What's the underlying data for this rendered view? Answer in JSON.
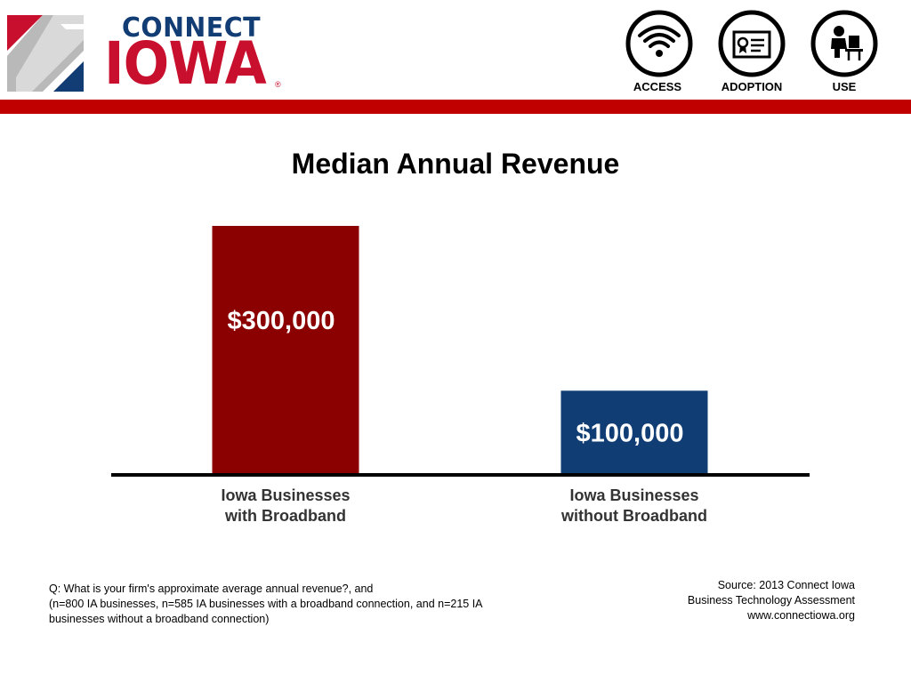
{
  "header": {
    "logo": {
      "word1": "CONNECT",
      "word2": "IOWA",
      "reg": "®"
    },
    "icons": [
      {
        "label": "ACCESS",
        "icon": "wifi-icon"
      },
      {
        "label": "ADOPTION",
        "icon": "certificate-icon"
      },
      {
        "label": "USE",
        "icon": "computer-user-icon"
      }
    ],
    "colors": {
      "brand_red": "#c00000",
      "brand_blue": "#123d74"
    }
  },
  "chart_data": {
    "type": "bar",
    "title": "Median Annual Revenue",
    "categories": [
      [
        "Iowa Businesses",
        "with Broadband"
      ],
      [
        "Iowa Businesses",
        "without Broadband"
      ]
    ],
    "values": [
      300000,
      100000
    ],
    "data_labels": [
      "$300,000",
      "$100,000"
    ],
    "colors": [
      "#8b0000",
      "#0f3d74"
    ],
    "xlabel": "",
    "ylabel": "",
    "ylim": [
      0,
      300000
    ],
    "grid": false,
    "legend": "none"
  },
  "footer": {
    "question": [
      "Q: What is your firm's approximate average annual revenue?, and",
      "(n=800 IA businesses, n=585 IA businesses with a broadband connection, and n=215 IA",
      "businesses without a broadband connection)"
    ],
    "source": [
      "Source: 2013 Connect Iowa",
      "Business Technology Assessment",
      "www.connectiowa.org"
    ]
  }
}
